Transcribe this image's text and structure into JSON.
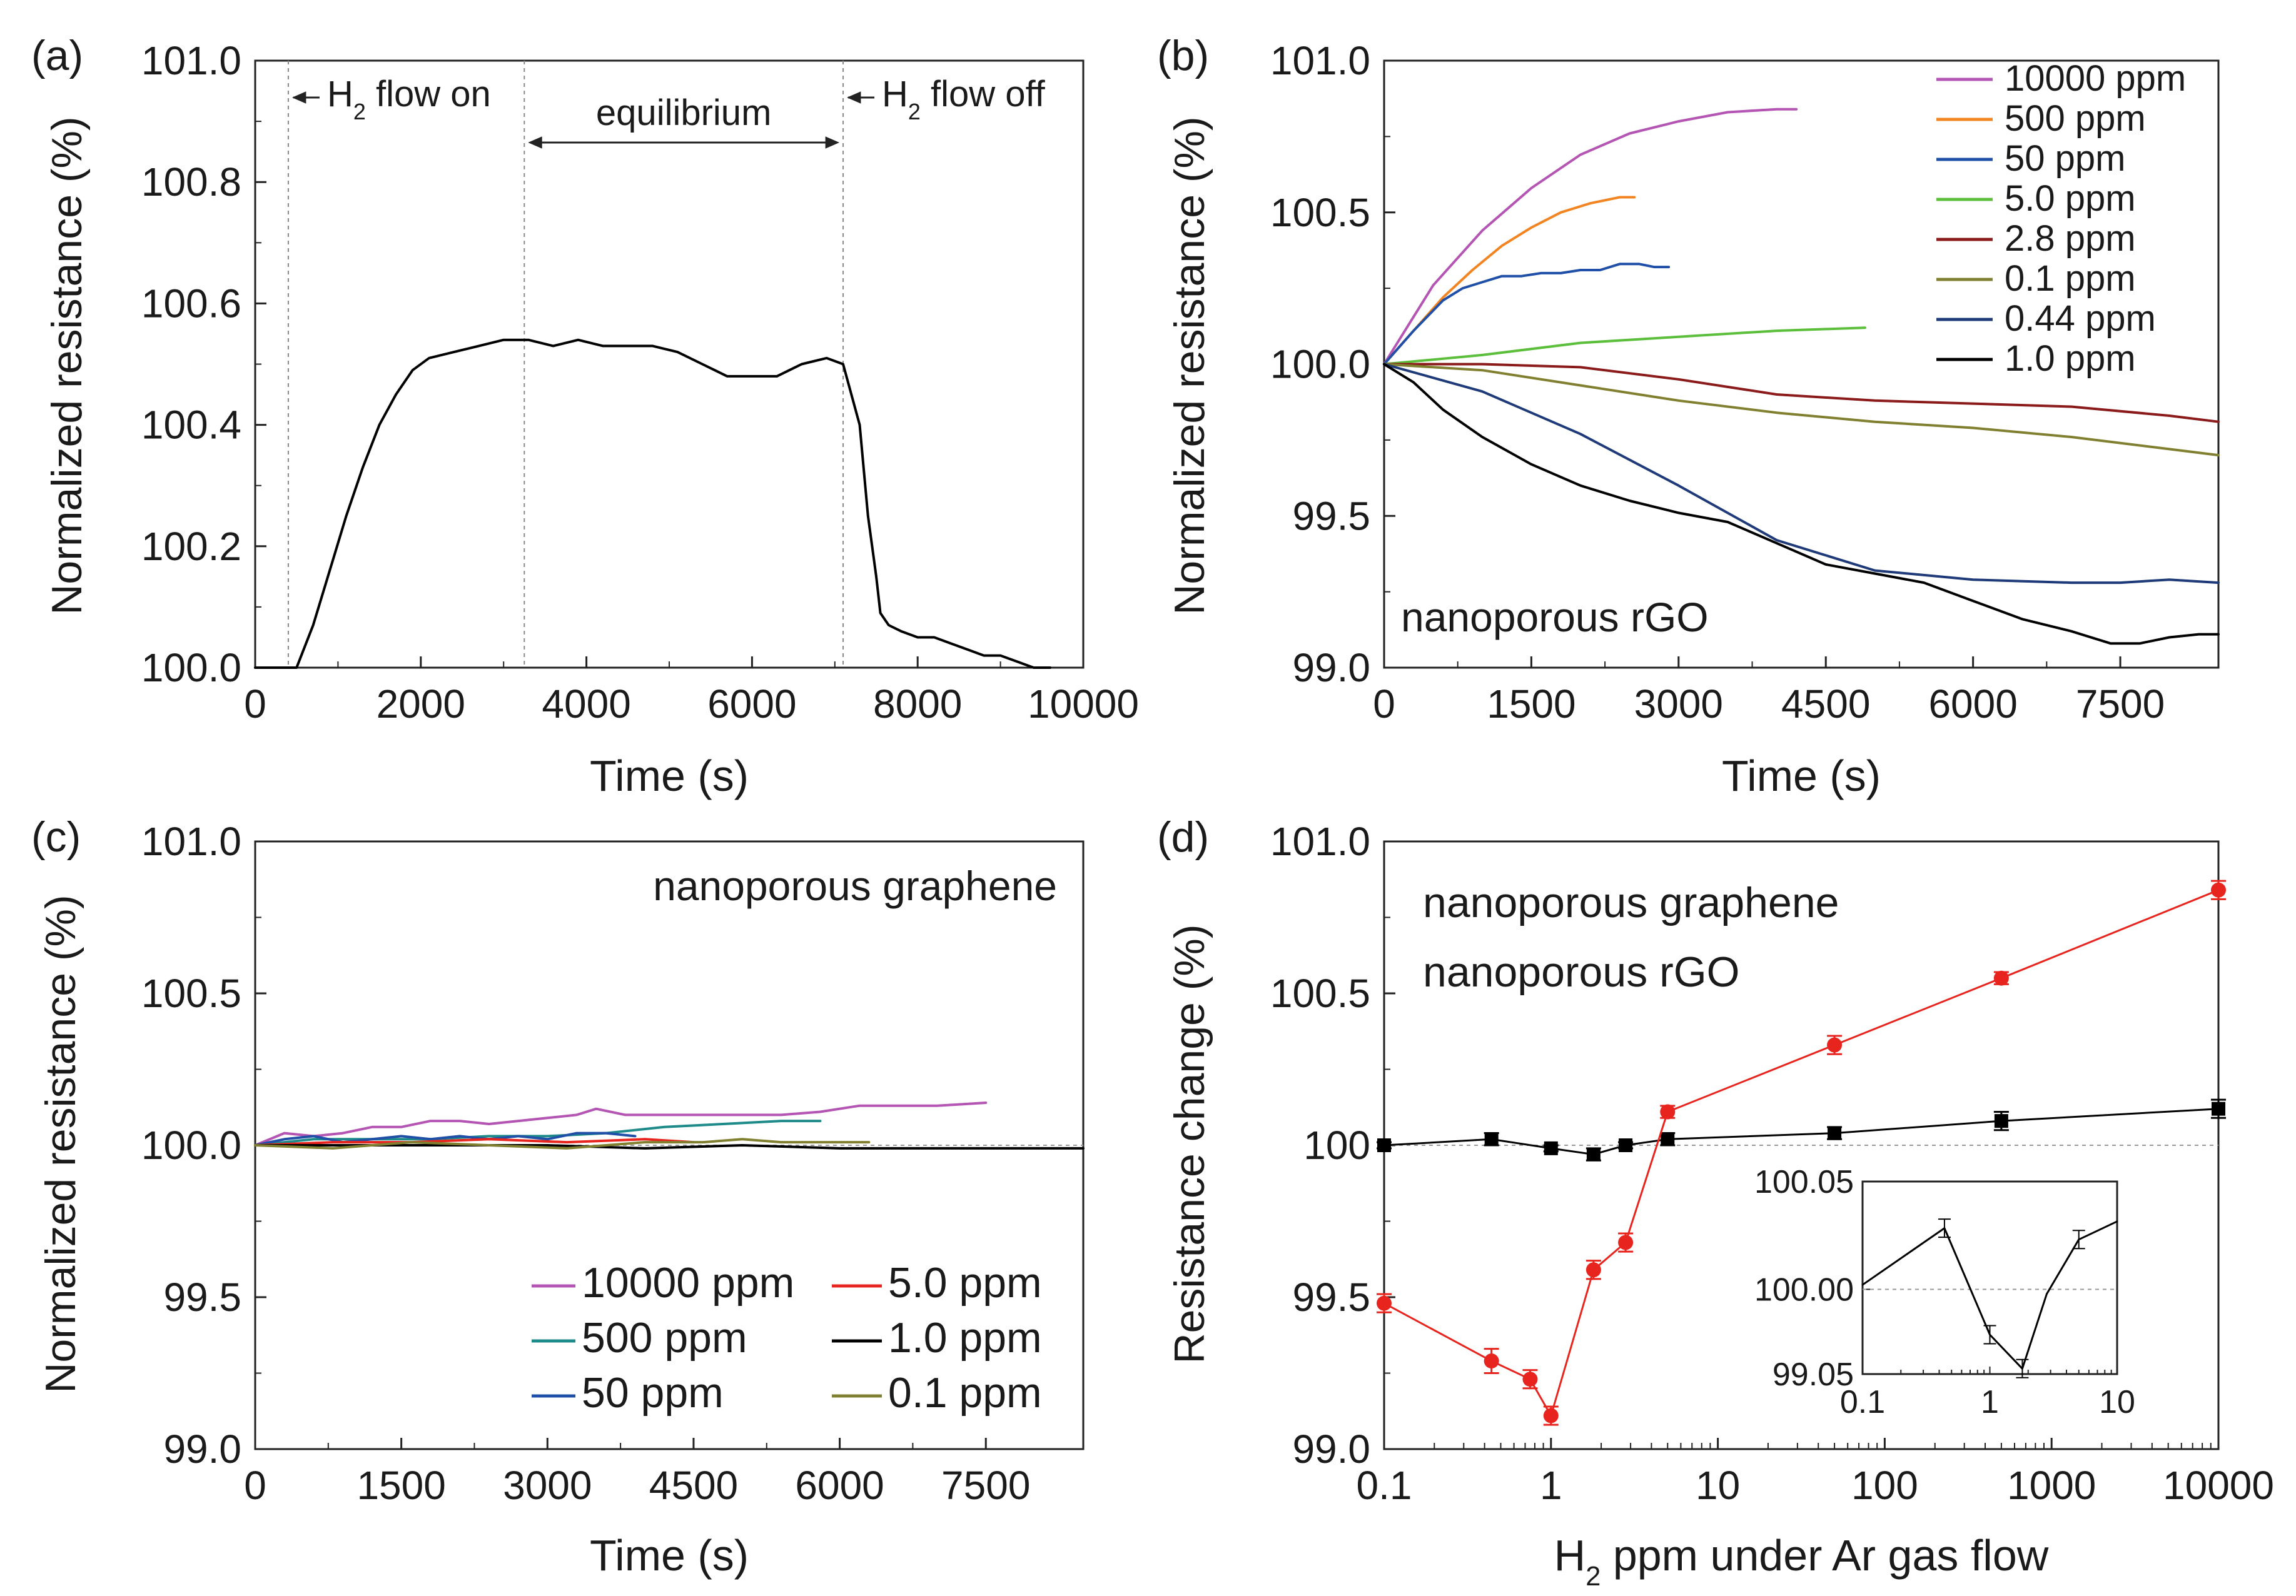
{
  "chart_data": [
    {
      "panel": "(a)",
      "type": "line",
      "title": "",
      "xlabel": "Time (s)",
      "ylabel": "Normalized resistance (%)",
      "xlim": [
        0,
        10000
      ],
      "ylim": [
        100.0,
        101.0
      ],
      "xticks": [
        0,
        2000,
        4000,
        6000,
        8000,
        10000
      ],
      "xtick_labels": [
        "0",
        "2000",
        "4000",
        "6000",
        "8000",
        "10000"
      ],
      "yticks": [
        100.0,
        100.2,
        100.4,
        100.6,
        100.8,
        101.0
      ],
      "ytick_labels": [
        "100.0",
        "100.2",
        "100.4",
        "100.6",
        "100.8",
        "101.0"
      ],
      "vlines": [
        400,
        3250,
        7100
      ],
      "annotations": {
        "h2_on_prefix": "H",
        "h2_sub": "2",
        "h2_on_suffix": " flow on",
        "equilibrium": "equilibrium",
        "h2_off_prefix": "H",
        "h2_off_suffix": " flow off"
      },
      "series": [
        {
          "name": "response",
          "color": "#000000",
          "x": [
            0,
            500,
            700,
            900,
            1100,
            1300,
            1500,
            1700,
            1900,
            2100,
            2400,
            2700,
            3000,
            3300,
            3600,
            3900,
            4200,
            4500,
            4800,
            5100,
            5400,
            5700,
            6000,
            6300,
            6600,
            6900,
            7100,
            7300,
            7400,
            7500,
            7550,
            7650,
            7800,
            8000,
            8200,
            8400,
            8600,
            8800,
            9000,
            9200,
            9400,
            9600
          ],
          "y": [
            100.0,
            100.0,
            100.07,
            100.16,
            100.25,
            100.33,
            100.4,
            100.45,
            100.49,
            100.51,
            100.52,
            100.53,
            100.54,
            100.54,
            100.53,
            100.54,
            100.53,
            100.53,
            100.53,
            100.52,
            100.5,
            100.48,
            100.48,
            100.48,
            100.5,
            100.51,
            100.5,
            100.4,
            100.25,
            100.15,
            100.09,
            100.07,
            100.06,
            100.05,
            100.05,
            100.04,
            100.03,
            100.02,
            100.02,
            100.01,
            100.0,
            100.0
          ]
        }
      ]
    },
    {
      "panel": "(b)",
      "type": "line",
      "title": "",
      "xlabel": "Time (s)",
      "ylabel": "Normalized resistance (%)",
      "xlim": [
        0,
        8500
      ],
      "ylim": [
        99.0,
        101.0
      ],
      "xticks": [
        0,
        1500,
        3000,
        4500,
        6000,
        7500
      ],
      "xtick_labels": [
        "0",
        "1500",
        "3000",
        "4500",
        "6000",
        "7500"
      ],
      "yticks": [
        99.0,
        99.5,
        100.0,
        100.5,
        101.0
      ],
      "ytick_labels": [
        "99.0",
        "99.5",
        "100.0",
        "100.5",
        "101.0"
      ],
      "inner_label": "nanoporous rGO",
      "legend_position": "top-right",
      "series": [
        {
          "name": "10000 ppm",
          "color": "#b455b4",
          "x": [
            0,
            500,
            1000,
            1500,
            2000,
            2500,
            3000,
            3500,
            4000,
            4200
          ],
          "y": [
            100.0,
            100.26,
            100.44,
            100.58,
            100.69,
            100.76,
            100.8,
            100.83,
            100.84,
            100.84
          ]
        },
        {
          "name": "500 ppm",
          "color": "#f28522",
          "x": [
            0,
            300,
            600,
            900,
            1200,
            1500,
            1800,
            2100,
            2400,
            2550
          ],
          "y": [
            100.0,
            100.11,
            100.22,
            100.31,
            100.39,
            100.45,
            100.5,
            100.53,
            100.55,
            100.55
          ]
        },
        {
          "name": "50 ppm",
          "color": "#1f4fa6",
          "x": [
            0,
            300,
            600,
            800,
            1000,
            1200,
            1400,
            1600,
            1800,
            2000,
            2200,
            2400,
            2600,
            2750,
            2900
          ],
          "y": [
            100.0,
            100.11,
            100.21,
            100.25,
            100.27,
            100.29,
            100.29,
            100.3,
            100.3,
            100.31,
            100.31,
            100.33,
            100.33,
            100.32,
            100.32
          ]
        },
        {
          "name": "5.0 ppm",
          "color": "#5cbf3c",
          "x": [
            0,
            1000,
            2000,
            3000,
            4000,
            4900
          ],
          "y": [
            100.0,
            100.03,
            100.07,
            100.09,
            100.11,
            100.12
          ]
        },
        {
          "name": "2.8 ppm",
          "color": "#8b1a1a",
          "x": [
            0,
            1000,
            2000,
            3000,
            4000,
            5000,
            6000,
            7000,
            8000,
            8500
          ],
          "y": [
            100.0,
            100.0,
            99.99,
            99.95,
            99.9,
            99.88,
            99.87,
            99.86,
            99.83,
            99.81
          ]
        },
        {
          "name": "0.1 ppm",
          "color": "#808030",
          "x": [
            0,
            1000,
            2000,
            3000,
            4000,
            5000,
            6000,
            7000,
            8000,
            8500
          ],
          "y": [
            100.0,
            99.98,
            99.93,
            99.88,
            99.84,
            99.81,
            99.79,
            99.76,
            99.72,
            99.7
          ]
        },
        {
          "name": "0.44 ppm",
          "color": "#1e3a78",
          "x": [
            0,
            1000,
            2000,
            3000,
            4000,
            5000,
            6000,
            7000,
            7500,
            8000,
            8500
          ],
          "y": [
            100.0,
            99.91,
            99.77,
            99.6,
            99.42,
            99.32,
            99.29,
            99.28,
            99.28,
            99.29,
            99.28
          ]
        },
        {
          "name": "1.0 ppm",
          "color": "#000000",
          "x": [
            0,
            300,
            600,
            1000,
            1500,
            2000,
            2500,
            3000,
            3500,
            4000,
            4500,
            5000,
            5500,
            6000,
            6500,
            7000,
            7400,
            7700,
            8000,
            8300,
            8500
          ],
          "y": [
            100.0,
            99.94,
            99.85,
            99.76,
            99.67,
            99.6,
            99.55,
            99.51,
            99.48,
            99.41,
            99.34,
            99.31,
            99.28,
            99.22,
            99.16,
            99.12,
            99.08,
            99.08,
            99.1,
            99.11,
            99.11
          ]
        }
      ]
    },
    {
      "panel": "(c)",
      "type": "line",
      "title": "",
      "xlabel": "Time (s)",
      "ylabel": "Normalized resistance (%)",
      "xlim": [
        0,
        8500
      ],
      "ylim": [
        99.0,
        101.0
      ],
      "xticks": [
        0,
        1500,
        3000,
        4500,
        6000,
        7500
      ],
      "xtick_labels": [
        "0",
        "1500",
        "3000",
        "4500",
        "6000",
        "7500"
      ],
      "yticks": [
        99.0,
        99.5,
        100.0,
        100.5,
        101.0
      ],
      "ytick_labels": [
        "99.0",
        "99.5",
        "100.0",
        "100.5",
        "101.0"
      ],
      "inner_label": "nanoporous graphene",
      "legend_position": "bottom-right",
      "series": [
        {
          "name": "10000 ppm",
          "color": "#b455b4",
          "x": [
            0,
            300,
            600,
            900,
            1200,
            1500,
            1800,
            2100,
            2400,
            2700,
            3000,
            3300,
            3500,
            3800,
            4200,
            4600,
            5000,
            5400,
            5800,
            6200,
            6600,
            7000,
            7500
          ],
          "y": [
            100.0,
            100.04,
            100.03,
            100.04,
            100.06,
            100.06,
            100.08,
            100.08,
            100.07,
            100.08,
            100.09,
            100.1,
            100.12,
            100.1,
            100.1,
            100.1,
            100.1,
            100.1,
            100.11,
            100.13,
            100.13,
            100.13,
            100.14
          ]
        },
        {
          "name": "500 ppm",
          "color": "#1f8a8a",
          "x": [
            0,
            600,
            1200,
            1800,
            2400,
            3000,
            3600,
            4200,
            4800,
            5400,
            5800
          ],
          "y": [
            100.0,
            100.02,
            100.02,
            100.02,
            100.03,
            100.03,
            100.04,
            100.06,
            100.07,
            100.08,
            100.08
          ]
        },
        {
          "name": "50 ppm",
          "color": "#1f4fa6",
          "x": [
            0,
            300,
            600,
            900,
            1200,
            1500,
            1800,
            2100,
            2400,
            2700,
            3000,
            3300,
            3600,
            3900
          ],
          "y": [
            100.0,
            100.02,
            100.03,
            100.01,
            100.02,
            100.03,
            100.02,
            100.03,
            100.02,
            100.03,
            100.02,
            100.04,
            100.04,
            100.03
          ]
        },
        {
          "name": "5.0 ppm",
          "color": "#e8241e",
          "x": [
            0,
            800,
            1600,
            2400,
            3200,
            4000,
            4500
          ],
          "y": [
            100.0,
            100.01,
            100.01,
            100.02,
            100.01,
            100.02,
            100.01
          ]
        },
        {
          "name": "1.0 ppm",
          "color": "#000000",
          "x": [
            0,
            1000,
            2000,
            3000,
            4000,
            5000,
            6000,
            7000,
            8000,
            8500
          ],
          "y": [
            100.0,
            100.0,
            100.0,
            100.0,
            99.99,
            100.0,
            99.99,
            99.99,
            99.99,
            99.99
          ]
        },
        {
          "name": "0.1 ppm",
          "color": "#808030",
          "x": [
            0,
            800,
            1600,
            2400,
            3200,
            4000,
            4600,
            5000,
            5400,
            6000,
            6300
          ],
          "y": [
            100.0,
            99.99,
            100.01,
            100.0,
            99.99,
            100.01,
            100.01,
            100.02,
            100.01,
            100.01,
            100.01
          ]
        }
      ]
    },
    {
      "panel": "(d)",
      "type": "scatter",
      "title": "",
      "xlabel_prefix": "H",
      "xlabel_sub": "2",
      "xlabel_suffix": " ppm under Ar gas flow",
      "ylabel": "Resistance change (%)",
      "xscale": "log",
      "xlim": [
        0.1,
        10000
      ],
      "ylim": [
        99.0,
        101.0
      ],
      "xticks": [
        0.1,
        1,
        10,
        100,
        1000,
        10000
      ],
      "xtick_labels": [
        "0.1",
        "1",
        "10",
        "100",
        "1000",
        "10000"
      ],
      "yticks": [
        99.0,
        99.5,
        100.0,
        100.5,
        101.0
      ],
      "ytick_labels": [
        "99.0",
        "99.5",
        "100",
        "100.5",
        "101.0"
      ],
      "hline": 100.0,
      "legend_position": "top-left",
      "series": [
        {
          "name": "nanoporous graphene",
          "color": "#000000",
          "marker": "square",
          "x": [
            0.1,
            0.44,
            1.0,
            1.8,
            2.8,
            5.0,
            50,
            500,
            10000
          ],
          "y": [
            100.0,
            100.02,
            99.99,
            99.97,
            100.0,
            100.02,
            100.04,
            100.08,
            100.12
          ],
          "err": [
            0.01,
            0.02,
            0.01,
            0.02,
            0.01,
            0.02,
            0.02,
            0.03,
            0.03
          ]
        },
        {
          "name": "nanoporous rGO",
          "color": "#e8241e",
          "marker": "circle",
          "x": [
            0.1,
            0.44,
            0.75,
            1.0,
            1.8,
            2.8,
            5.0,
            50,
            500,
            10000
          ],
          "y": [
            99.48,
            99.29,
            99.23,
            99.11,
            99.59,
            99.68,
            100.11,
            100.33,
            100.55,
            100.84
          ],
          "err": [
            0.03,
            0.04,
            0.03,
            0.03,
            0.03,
            0.03,
            0.02,
            0.03,
            0.02,
            0.03
          ]
        }
      ],
      "inset": {
        "xscale": "log",
        "xlim": [
          0.1,
          10
        ],
        "ylim": [
          99.05,
          100.05
        ],
        "xticks": [
          0.1,
          1,
          10
        ],
        "xtick_labels": [
          "0.1",
          "1",
          "10"
        ],
        "yticks": [
          99.05,
          100.0,
          100.05
        ],
        "ytick_labels": [
          "99.05",
          "100.00",
          "100.05"
        ],
        "hline_value": 100.0,
        "series": [
          {
            "name": "nanoporous graphene",
            "color": "#000000",
            "x": [
              0.1,
              0.44,
              1.0,
              1.8,
              2.8,
              5.0,
              10
            ],
            "y": [
              100.002,
              100.027,
              99.98,
              99.965,
              99.998,
              100.022,
              100.03
            ],
            "err": [
              0,
              0.004,
              0.004,
              0.004,
              0,
              0.004,
              0
            ]
          }
        ]
      }
    }
  ]
}
